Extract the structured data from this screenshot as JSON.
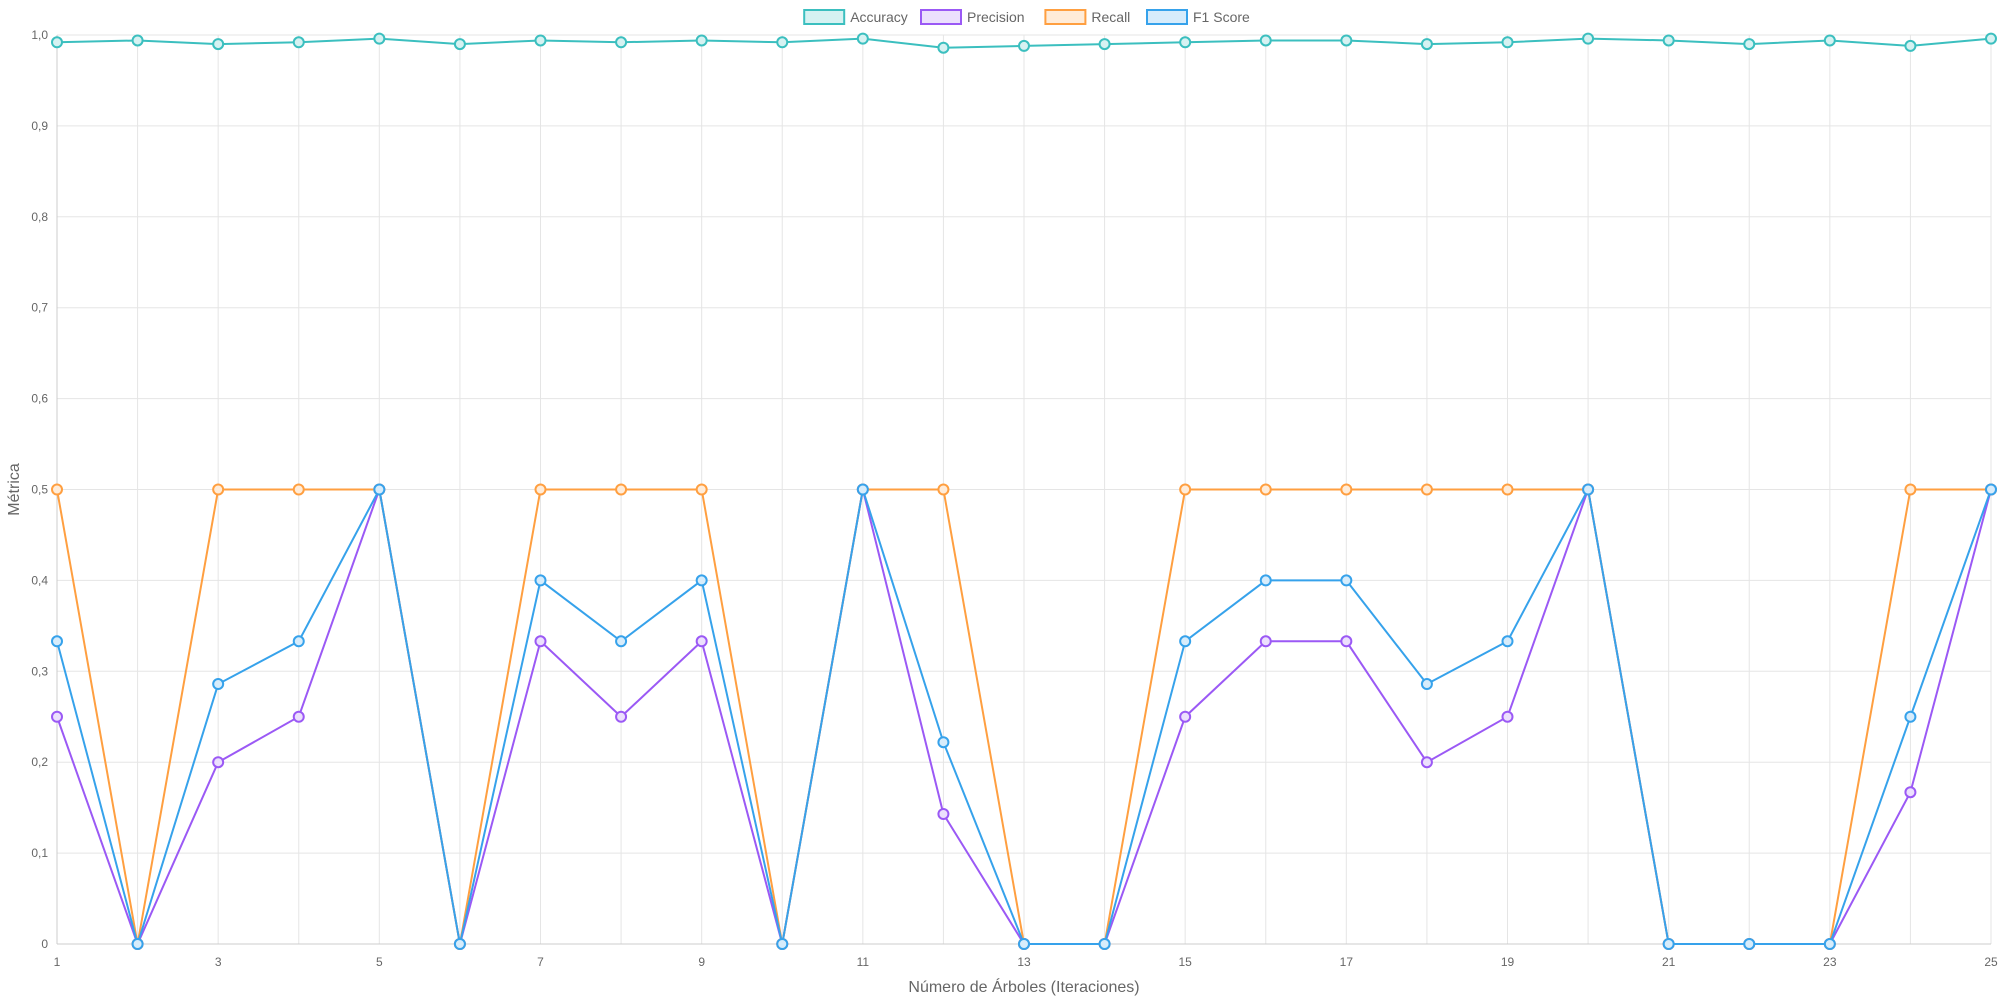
{
  "chart_data": {
    "type": "line",
    "xlabel": "Número de Árboles (Iteraciones)",
    "ylabel": "Métrica",
    "ylim": [
      0,
      1
    ],
    "y_ticks": [
      "0",
      "0,1",
      "0,2",
      "0,3",
      "0,4",
      "0,5",
      "0,6",
      "0,7",
      "0,8",
      "0,9",
      "1,0"
    ],
    "x": [
      1,
      2,
      3,
      4,
      5,
      6,
      7,
      8,
      9,
      10,
      11,
      12,
      13,
      14,
      15,
      16,
      17,
      18,
      19,
      20,
      21,
      22,
      23,
      24,
      25
    ],
    "x_tick_labels": [
      "1",
      "3",
      "5",
      "7",
      "9",
      "11",
      "13",
      "15",
      "17",
      "19",
      "21",
      "23",
      "25"
    ],
    "grid": true,
    "legend_position": "top-center",
    "series": [
      {
        "name": "Accuracy",
        "color": "#3bbfbf",
        "fill": "#d6f2f2",
        "values": [
          0.992,
          0.994,
          0.99,
          0.992,
          0.996,
          0.99,
          0.994,
          0.992,
          0.994,
          0.992,
          0.996,
          0.986,
          0.988,
          0.99,
          0.992,
          0.994,
          0.994,
          0.99,
          0.992,
          0.996,
          0.994,
          0.99,
          0.994,
          0.988,
          0.996
        ]
      },
      {
        "name": "Precision",
        "color": "#9b59f5",
        "fill": "#ece0fd",
        "values": [
          0.25,
          0,
          0.2,
          0.25,
          0.5,
          0,
          0.333,
          0.25,
          0.333,
          0,
          0.5,
          0.143,
          0,
          0,
          0.25,
          0.333,
          0.333,
          0.2,
          0.25,
          0.5,
          0,
          0,
          0,
          0.167,
          0.5
        ]
      },
      {
        "name": "Recall",
        "color": "#ff9f40",
        "fill": "#ffecd9",
        "values": [
          0.5,
          0,
          0.5,
          0.5,
          0.5,
          0,
          0.5,
          0.5,
          0.5,
          0,
          0.5,
          0.5,
          0,
          0,
          0.5,
          0.5,
          0.5,
          0.5,
          0.5,
          0.5,
          0,
          0,
          0,
          0.5,
          0.5
        ]
      },
      {
        "name": "F1 Score",
        "color": "#36a2eb",
        "fill": "#d7ecfb",
        "values": [
          0.333,
          0,
          0.286,
          0.333,
          0.5,
          0,
          0.4,
          0.333,
          0.4,
          0,
          0.5,
          0.222,
          0,
          0,
          0.333,
          0.4,
          0.4,
          0.286,
          0.333,
          0.5,
          0,
          0,
          0,
          0.25,
          0.5
        ]
      }
    ]
  }
}
